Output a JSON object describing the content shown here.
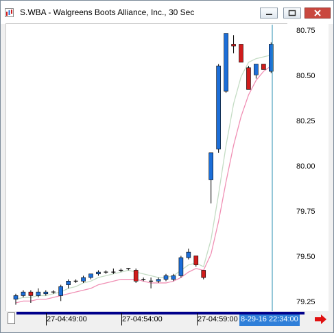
{
  "window": {
    "title": "S.WBA - Walgreens Boots Alliance, Inc., 30 Sec",
    "controls": [
      "minimize",
      "maximize",
      "close"
    ]
  },
  "colors": {
    "up": "#1c6ed8",
    "down": "#d01c1c",
    "doji": "#000000",
    "ma_fast": "#c4dcc4",
    "ma_slow": "#f08fb4",
    "cursor": "#2a8fb0",
    "time_bar": "#00008b",
    "cursor_label_bg": "#2f7fd9",
    "scroll_arrow": "#e01010"
  },
  "chart_data": {
    "type": "candlestick",
    "title": "S.WBA - Walgreens Boots Alliance, Inc., 30 Sec",
    "y_ticks": [
      "80.75",
      "80.50",
      "80.25",
      "80.00",
      "79.75",
      "79.50",
      "79.25"
    ],
    "ylim": [
      79.25,
      80.75
    ],
    "x_tick_labels": [
      "27-04:49:00",
      "27-04:54:00",
      "27-04:59:00"
    ],
    "cursor_label": "8-29-16 22:34:00",
    "candles": [
      {
        "o": 79.27,
        "h": 79.3,
        "l": 79.24,
        "c": 79.29
      },
      {
        "o": 79.29,
        "h": 79.32,
        "l": 79.28,
        "c": 79.31
      },
      {
        "o": 79.31,
        "h": 79.32,
        "l": 79.25,
        "c": 79.29
      },
      {
        "o": 79.29,
        "h": 79.33,
        "l": 79.28,
        "c": 79.31
      },
      {
        "o": 79.3,
        "h": 79.32,
        "l": 79.29,
        "c": 79.31
      },
      {
        "o": 79.31,
        "h": 79.32,
        "l": 79.3,
        "c": 79.31
      },
      {
        "o": 79.29,
        "h": 79.35,
        "l": 79.26,
        "c": 79.34
      },
      {
        "o": 79.35,
        "h": 79.38,
        "l": 79.33,
        "c": 79.37
      },
      {
        "o": 79.37,
        "h": 79.38,
        "l": 79.36,
        "c": 79.37
      },
      {
        "o": 79.37,
        "h": 79.4,
        "l": 79.36,
        "c": 79.39
      },
      {
        "o": 79.39,
        "h": 79.41,
        "l": 79.38,
        "c": 79.41
      },
      {
        "o": 79.41,
        "h": 79.43,
        "l": 79.4,
        "c": 79.42
      },
      {
        "o": 79.42,
        "h": 79.43,
        "l": 79.41,
        "c": 79.42
      },
      {
        "o": 79.42,
        "h": 79.44,
        "l": 79.41,
        "c": 79.42
      },
      {
        "o": 79.43,
        "h": 79.44,
        "l": 79.42,
        "c": 79.43
      },
      {
        "o": 79.44,
        "h": 79.44,
        "l": 79.43,
        "c": 79.44
      },
      {
        "o": 79.43,
        "h": 79.44,
        "l": 79.36,
        "c": 79.37
      },
      {
        "o": 79.38,
        "h": 79.39,
        "l": 79.37,
        "c": 79.38
      },
      {
        "o": 79.37,
        "h": 79.39,
        "l": 79.33,
        "c": 79.37
      },
      {
        "o": 79.37,
        "h": 79.39,
        "l": 79.36,
        "c": 79.38
      },
      {
        "o": 79.38,
        "h": 79.41,
        "l": 79.37,
        "c": 79.4
      },
      {
        "o": 79.38,
        "h": 79.41,
        "l": 79.37,
        "c": 79.4
      },
      {
        "o": 79.4,
        "h": 79.51,
        "l": 79.39,
        "c": 79.5
      },
      {
        "o": 79.5,
        "h": 79.55,
        "l": 79.49,
        "c": 79.53
      },
      {
        "o": 79.51,
        "h": 79.51,
        "l": 79.45,
        "c": 79.46
      },
      {
        "o": 79.43,
        "h": 79.43,
        "l": 79.38,
        "c": 79.39
      },
      {
        "o": 79.93,
        "h": 80.07,
        "l": 79.8,
        "c": 80.08
      },
      {
        "o": 80.1,
        "h": 80.57,
        "l": 80.08,
        "c": 80.56
      },
      {
        "o": 80.42,
        "h": 80.74,
        "l": 80.41,
        "c": 80.74
      },
      {
        "o": 80.68,
        "h": 80.73,
        "l": 80.63,
        "c": 80.67
      },
      {
        "o": 80.68,
        "h": 80.67,
        "l": 80.58,
        "c": 80.58
      },
      {
        "o": 80.55,
        "h": 80.56,
        "l": 80.43,
        "c": 80.43
      },
      {
        "o": 80.51,
        "h": 80.57,
        "l": 80.49,
        "c": 80.57
      },
      {
        "o": 80.57,
        "h": 80.57,
        "l": 80.54,
        "c": 80.54
      },
      {
        "o": 80.53,
        "h": 80.69,
        "l": 80.52,
        "c": 80.68
      }
    ],
    "ma_fast": [
      79.27,
      79.28,
      79.28,
      79.29,
      79.29,
      79.3,
      79.31,
      79.33,
      79.34,
      79.36,
      79.37,
      79.39,
      79.4,
      79.41,
      79.42,
      79.43,
      79.42,
      79.41,
      79.4,
      79.39,
      79.39,
      79.4,
      79.43,
      79.46,
      79.47,
      79.45,
      79.6,
      79.85,
      80.12,
      80.35,
      80.5,
      80.58,
      80.6,
      80.61,
      80.62
    ],
    "ma_slow": [
      79.25,
      79.26,
      79.26,
      79.27,
      79.27,
      79.28,
      79.29,
      79.3,
      79.31,
      79.32,
      79.33,
      79.35,
      79.36,
      79.37,
      79.38,
      79.38,
      79.38,
      79.37,
      79.36,
      79.36,
      79.36,
      79.37,
      79.39,
      79.42,
      79.44,
      79.43,
      79.52,
      79.7,
      79.92,
      80.12,
      80.28,
      80.4,
      80.48,
      80.53,
      80.56
    ]
  }
}
